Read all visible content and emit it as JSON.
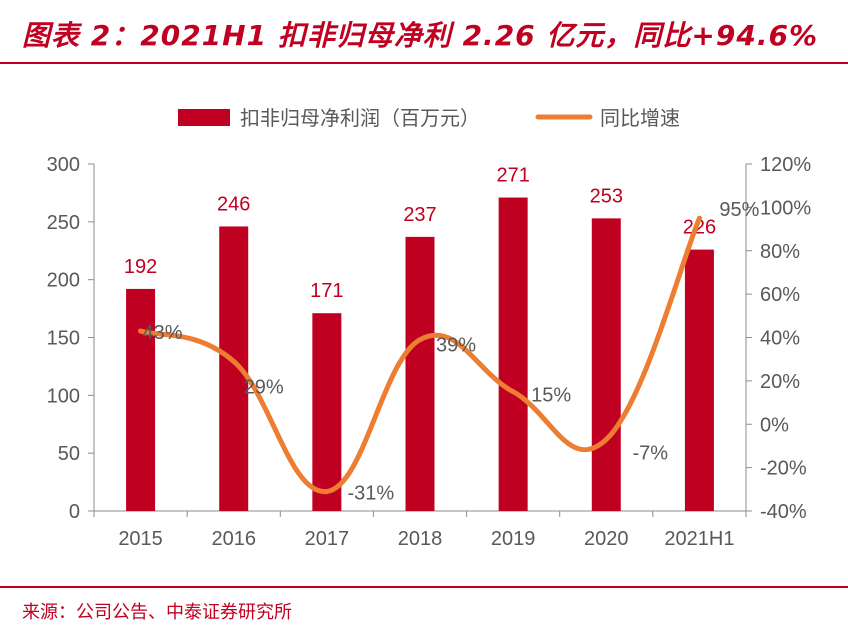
{
  "title": "图表 2：2021H1 扣非归母净利 2.26 亿元，同比+94.6%",
  "source": "来源：公司公告、中泰证券研究所",
  "colors": {
    "bar": "#c00020",
    "line": "#ed7d31",
    "accent": "#c00020",
    "text": "#595959"
  },
  "chart_data": {
    "type": "bar",
    "categories": [
      "2015",
      "2016",
      "2017",
      "2018",
      "2019",
      "2020",
      "2021H1"
    ],
    "series": [
      {
        "name": "扣非归母净利润（百万元）",
        "type": "bar",
        "axis": "left",
        "values": [
          192,
          246,
          171,
          237,
          271,
          253,
          226
        ],
        "labels": [
          "192",
          "246",
          "171",
          "237",
          "271",
          "253",
          "226"
        ]
      },
      {
        "name": "同比增速",
        "type": "line",
        "axis": "right",
        "values": [
          43,
          29,
          -31,
          39,
          15,
          -7,
          95
        ],
        "labels": [
          "43%",
          "29%",
          "-31%",
          "39%",
          "15%",
          "-7%",
          "95%"
        ]
      }
    ],
    "y_left": {
      "min": 0,
      "max": 300,
      "ticks": [
        "0",
        "50",
        "100",
        "150",
        "200",
        "250",
        "300"
      ]
    },
    "y_right": {
      "min": -40,
      "max": 120,
      "ticks": [
        "-40%",
        "-20%",
        "0%",
        "20%",
        "40%",
        "60%",
        "80%",
        "100%",
        "120%"
      ]
    },
    "legend": "top-center",
    "grid": false
  }
}
